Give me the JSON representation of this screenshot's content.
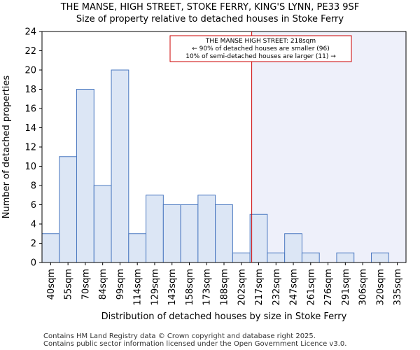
{
  "chart_data": {
    "type": "bar",
    "title": "THE MANSE, HIGH STREET, STOKE FERRY, KING'S LYNN, PE33 9SF",
    "subtitle": "Size of property relative to detached houses in Stoke Ferry",
    "xlabel": "Distribution of detached houses by size in Stoke Ferry",
    "ylabel": "Number of detached properties",
    "ylim": [
      0,
      24
    ],
    "yticks": [
      0,
      2,
      4,
      6,
      8,
      10,
      12,
      14,
      16,
      18,
      20,
      22,
      24
    ],
    "categories": [
      "40sqm",
      "55sqm",
      "70sqm",
      "84sqm",
      "99sqm",
      "114sqm",
      "129sqm",
      "143sqm",
      "158sqm",
      "173sqm",
      "188sqm",
      "202sqm",
      "217sqm",
      "232sqm",
      "247sqm",
      "261sqm",
      "276sqm",
      "291sqm",
      "306sqm",
      "320sqm",
      "335sqm"
    ],
    "values": [
      3,
      11,
      18,
      8,
      20,
      3,
      7,
      6,
      6,
      7,
      6,
      1,
      5,
      1,
      3,
      1,
      0,
      1,
      0,
      1,
      0
    ],
    "marker_value": 218,
    "marker_bin_index": 12.1,
    "annotation": {
      "line1": "THE MANSE HIGH STREET: 218sqm",
      "line2": "← 90% of detached houses are smaller (96)",
      "line3": "10% of semi-detached houses are larger (11) →"
    },
    "bar_color": "#dce6f5",
    "bar_edge_color": "#4a78c0",
    "marker_color": "#cc0000",
    "highlight_color": "#eef0fa"
  },
  "footer": {
    "line1": "Contains HM Land Registry data © Crown copyright and database right 2025.",
    "line2": "Contains public sector information licensed under the Open Government Licence v3.0."
  }
}
